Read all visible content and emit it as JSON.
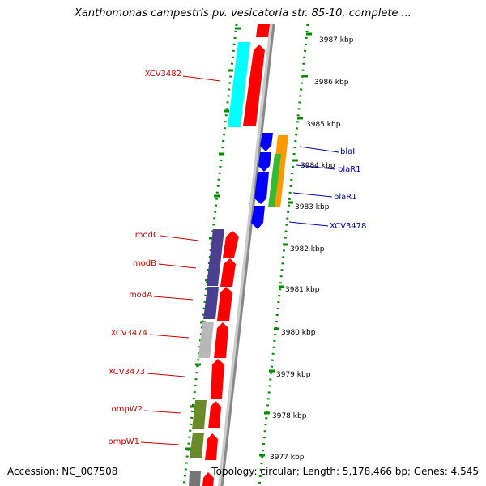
{
  "header": {
    "title": "Xanthomonas campestris pv. vesicatoria str. 85-10, complete ..."
  },
  "footer": {
    "accession": "Accession: NC_007508",
    "topology": "Topology: circular; Length: 5,178,466 bp; Genes: 4,545"
  },
  "scale": {
    "ticks": [
      "3987 kbp",
      "3986 kbp",
      "3985 kbp",
      "3984 kbp",
      "3983 kbp",
      "3982 kbp",
      "3981 kbp",
      "3980 kbp",
      "3979 kbp",
      "3978 kbp",
      "3977 kbp"
    ]
  },
  "genes": {
    "left": [
      "XCV3482",
      "modC",
      "modB",
      "modA",
      "XCV3474",
      "XCV3473",
      "ompW2",
      "ompW1"
    ],
    "right": [
      "blaI",
      "blaR1",
      "blaR1",
      "XCV3478"
    ]
  },
  "colors": {
    "forward": "#ff0000",
    "reverse": "#0000ff",
    "orf_cyan": "#00ffff",
    "orf_purple": "#4b3f8f",
    "orf_gray": "#b8b8b8",
    "orf_olive": "#6b8a2a",
    "orf_orange": "#ff9900",
    "orf_green": "#33bb33",
    "dotted": "#008800",
    "backbone": "#999999",
    "label_left": "#cc0000",
    "label_right": "#0000aa"
  }
}
